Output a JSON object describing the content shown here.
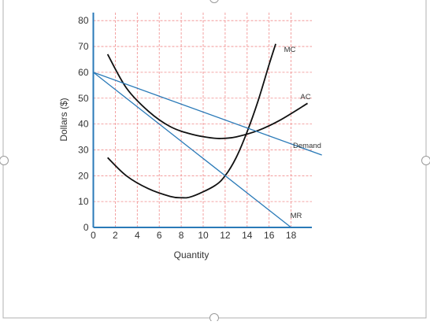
{
  "chart_data": {
    "type": "line",
    "title": "",
    "xlabel": "Quantity",
    "ylabel": "Dollars ($)",
    "xlim": [
      0,
      19
    ],
    "ylim": [
      0,
      85
    ],
    "x_ticks": [
      0,
      2,
      4,
      6,
      8,
      10,
      12,
      14,
      16,
      18
    ],
    "y_ticks": [
      0,
      10,
      20,
      30,
      40,
      50,
      60,
      70,
      80
    ],
    "grid": true,
    "legend": "none; curves labeled directly",
    "colors": {
      "demand_mr": "#2a7ab8",
      "cost_curves": "#111111",
      "grid": "#f08a8a",
      "axes": "#2a7ab8",
      "frame": "#aaaaaa"
    },
    "series": [
      {
        "name": "MC",
        "color": "#111111",
        "x": [
          1.3,
          3,
          5,
          7,
          8,
          9,
          11,
          12,
          13,
          14,
          15,
          16,
          16.6
        ],
        "y": [
          27,
          20,
          15,
          12,
          11.5,
          12,
          16,
          20,
          27,
          37,
          49,
          63,
          71
        ]
      },
      {
        "name": "AC",
        "color": "#111111",
        "x": [
          1.3,
          3,
          5,
          7,
          9,
          11,
          12,
          13,
          15,
          17,
          19.5
        ],
        "y": [
          67,
          54,
          45,
          39,
          36,
          34.5,
          34.5,
          35,
          37.5,
          41.5,
          48
        ]
      },
      {
        "name": "Demand",
        "color": "#2a7ab8",
        "x": [
          0,
          20.8
        ],
        "y": [
          60,
          28
        ]
      },
      {
        "name": "MR",
        "color": "#2a7ab8",
        "x": [
          0,
          18
        ],
        "y": [
          60,
          0
        ]
      }
    ]
  }
}
